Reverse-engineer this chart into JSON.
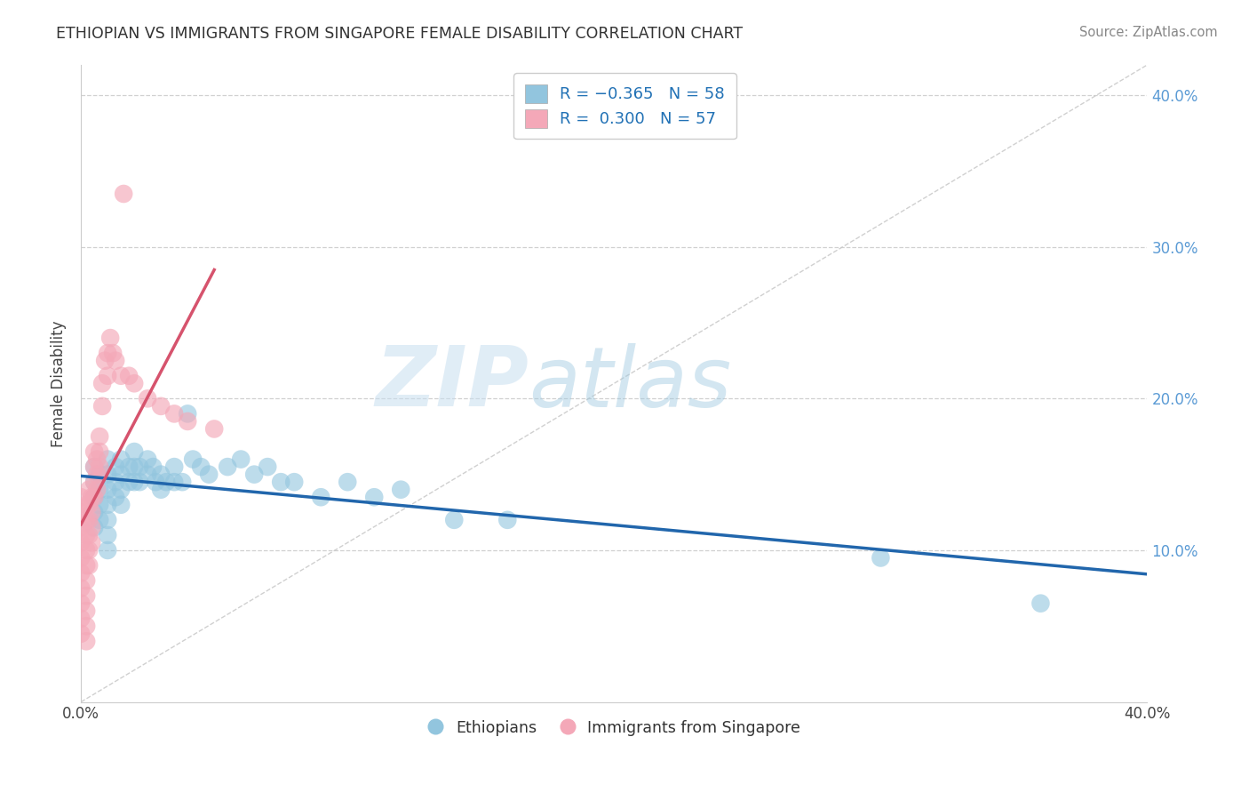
{
  "title": "ETHIOPIAN VS IMMIGRANTS FROM SINGAPORE FEMALE DISABILITY CORRELATION CHART",
  "source": "Source: ZipAtlas.com",
  "ylabel": "Female Disability",
  "watermark_zip": "ZIP",
  "watermark_atlas": "atlas",
  "xlim": [
    0.0,
    0.4
  ],
  "ylim": [
    0.0,
    0.42
  ],
  "ytick_positions": [
    0.1,
    0.2,
    0.3,
    0.4
  ],
  "ytick_labels": [
    "10.0%",
    "20.0%",
    "30.0%",
    "40.0%"
  ],
  "blue_color": "#92c5de",
  "pink_color": "#f4a8b8",
  "blue_line_color": "#2166ac",
  "pink_line_color": "#d6536d",
  "background_color": "#ffffff",
  "grid_color": "#d0d0d0",
  "ethiopians_x": [
    0.005,
    0.005,
    0.005,
    0.005,
    0.005,
    0.007,
    0.007,
    0.007,
    0.007,
    0.01,
    0.01,
    0.01,
    0.01,
    0.01,
    0.01,
    0.01,
    0.013,
    0.013,
    0.013,
    0.015,
    0.015,
    0.015,
    0.015,
    0.018,
    0.018,
    0.02,
    0.02,
    0.02,
    0.022,
    0.022,
    0.025,
    0.025,
    0.027,
    0.028,
    0.03,
    0.03,
    0.032,
    0.035,
    0.035,
    0.038,
    0.04,
    0.042,
    0.045,
    0.048,
    0.055,
    0.06,
    0.065,
    0.07,
    0.075,
    0.08,
    0.09,
    0.1,
    0.11,
    0.12,
    0.14,
    0.16,
    0.3,
    0.36
  ],
  "ethiopians_y": [
    0.155,
    0.145,
    0.135,
    0.125,
    0.115,
    0.15,
    0.14,
    0.13,
    0.12,
    0.16,
    0.15,
    0.14,
    0.13,
    0.12,
    0.11,
    0.1,
    0.155,
    0.145,
    0.135,
    0.16,
    0.15,
    0.14,
    0.13,
    0.155,
    0.145,
    0.165,
    0.155,
    0.145,
    0.155,
    0.145,
    0.16,
    0.15,
    0.155,
    0.145,
    0.15,
    0.14,
    0.145,
    0.155,
    0.145,
    0.145,
    0.19,
    0.16,
    0.155,
    0.15,
    0.155,
    0.16,
    0.15,
    0.155,
    0.145,
    0.145,
    0.135,
    0.145,
    0.135,
    0.14,
    0.12,
    0.12,
    0.095,
    0.065
  ],
  "singapore_x": [
    0.0,
    0.0,
    0.0,
    0.0,
    0.0,
    0.0,
    0.0,
    0.0,
    0.0,
    0.0,
    0.002,
    0.002,
    0.002,
    0.002,
    0.002,
    0.002,
    0.002,
    0.002,
    0.002,
    0.002,
    0.003,
    0.003,
    0.003,
    0.003,
    0.003,
    0.003,
    0.004,
    0.004,
    0.004,
    0.004,
    0.005,
    0.005,
    0.005,
    0.005,
    0.006,
    0.006,
    0.006,
    0.007,
    0.007,
    0.007,
    0.008,
    0.008,
    0.009,
    0.01,
    0.01,
    0.011,
    0.012,
    0.013,
    0.015,
    0.016,
    0.018,
    0.02,
    0.025,
    0.03,
    0.035,
    0.04,
    0.05
  ],
  "singapore_y": [
    0.135,
    0.125,
    0.115,
    0.105,
    0.095,
    0.085,
    0.075,
    0.065,
    0.055,
    0.045,
    0.13,
    0.12,
    0.11,
    0.1,
    0.09,
    0.08,
    0.07,
    0.06,
    0.05,
    0.04,
    0.14,
    0.13,
    0.12,
    0.11,
    0.1,
    0.09,
    0.135,
    0.125,
    0.115,
    0.105,
    0.165,
    0.155,
    0.145,
    0.135,
    0.16,
    0.15,
    0.14,
    0.175,
    0.165,
    0.155,
    0.21,
    0.195,
    0.225,
    0.23,
    0.215,
    0.24,
    0.23,
    0.225,
    0.215,
    0.335,
    0.215,
    0.21,
    0.2,
    0.195,
    0.19,
    0.185,
    0.18
  ]
}
